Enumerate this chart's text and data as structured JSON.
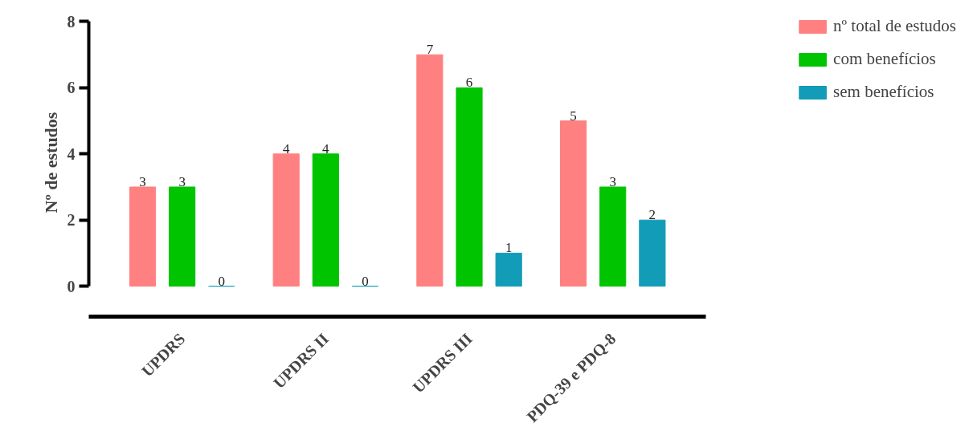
{
  "chart_data": {
    "type": "bar",
    "ylabel": "Nº de estudos",
    "categories": [
      "UPDRS",
      "UPDRS II",
      "UPDRS III",
      "PDQ-39 e PDQ-8"
    ],
    "series": [
      {
        "name": "nº total de estudos",
        "color": "#ff8080",
        "values": [
          3,
          4,
          7,
          5
        ]
      },
      {
        "name": "com benefícios",
        "color": "#00c400",
        "values": [
          3,
          4,
          6,
          3
        ]
      },
      {
        "name": "sem benefícios",
        "color": "#129cb8",
        "values": [
          0,
          0,
          1,
          2
        ]
      }
    ],
    "ylim": [
      0,
      8
    ],
    "yticks": [
      0,
      2,
      4,
      6,
      8
    ],
    "grid": false,
    "legend": "top right",
    "data_labels": true
  }
}
